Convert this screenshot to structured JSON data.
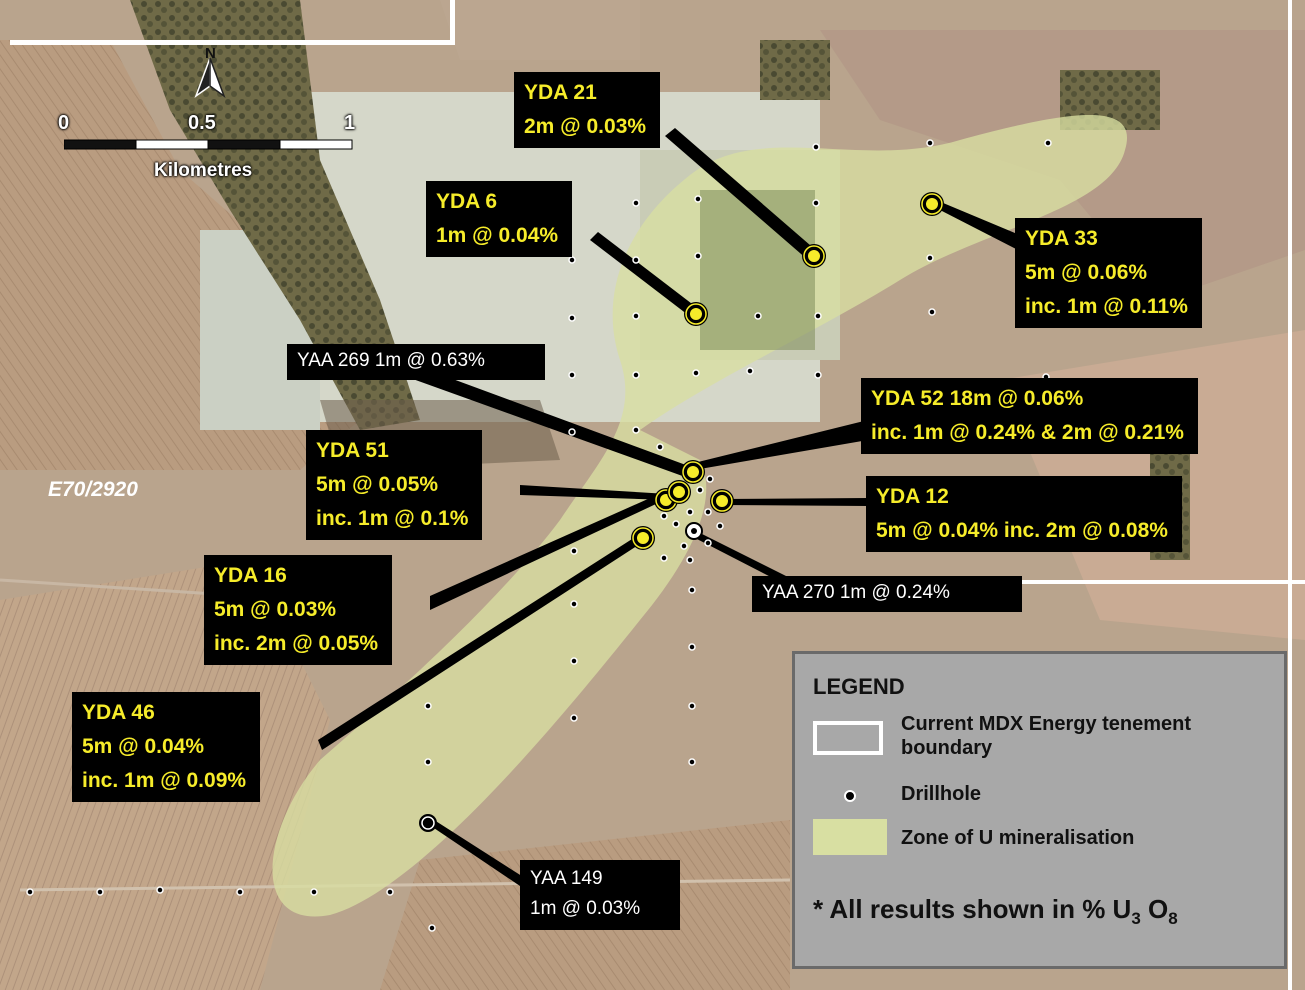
{
  "map": {
    "tenement_label": "E70/2920",
    "north_label": "N",
    "scale": {
      "ticks": [
        "0",
        "0.5",
        "1"
      ],
      "units": "Kilometres"
    }
  },
  "callouts": [
    {
      "id": "yda21",
      "lines": [
        "YDA 21",
        "2m @ 0.03%"
      ]
    },
    {
      "id": "yda6",
      "lines": [
        "YDA 6",
        "1m @ 0.04%"
      ]
    },
    {
      "id": "yda33",
      "lines": [
        "YDA 33",
        "5m @ 0.06%",
        "inc. 1m @ 0.11%"
      ]
    },
    {
      "id": "yaa269",
      "lines": [
        "YAA 269  1m @ 0.63%"
      ]
    },
    {
      "id": "yda52",
      "lines": [
        "YDA 52   18m @ 0.06%",
        "inc. 1m @ 0.24% & 2m @ 0.21%"
      ]
    },
    {
      "id": "yda51",
      "lines": [
        "YDA 51",
        "5m @ 0.05%",
        "inc. 1m @ 0.1%"
      ]
    },
    {
      "id": "yda12",
      "lines": [
        "YDA 12",
        "5m @ 0.04%  inc. 2m @ 0.08%"
      ]
    },
    {
      "id": "yda16",
      "lines": [
        "YDA 16",
        "5m @ 0.03%",
        "inc. 2m @ 0.05%"
      ]
    },
    {
      "id": "yaa270",
      "lines": [
        "YAA 270  1m @ 0.24%"
      ]
    },
    {
      "id": "yda46",
      "lines": [
        "YDA 46",
        "5m @ 0.04%",
        "inc. 1m @ 0.09%"
      ]
    },
    {
      "id": "yaa149",
      "lines": [
        "YAA 149",
        "1m @ 0.03%"
      ]
    }
  ],
  "legend": {
    "title": "LEGEND",
    "items": [
      {
        "label_1": "Current MDX Energy tenement",
        "label_2": "boundary"
      },
      {
        "label_1": "Drillhole"
      },
      {
        "label_1": "Zone of U mineralisation"
      }
    ],
    "note_prefix": "* All results shown in % U",
    "note_sub1": "3",
    "note_mid": " O",
    "note_sub2": "8"
  },
  "colors": {
    "highlight_text": "#f6ec2a",
    "callout_bg": "#000000",
    "zone_fill": "#d8dfa2",
    "legend_bg": "#a8a8a8"
  }
}
